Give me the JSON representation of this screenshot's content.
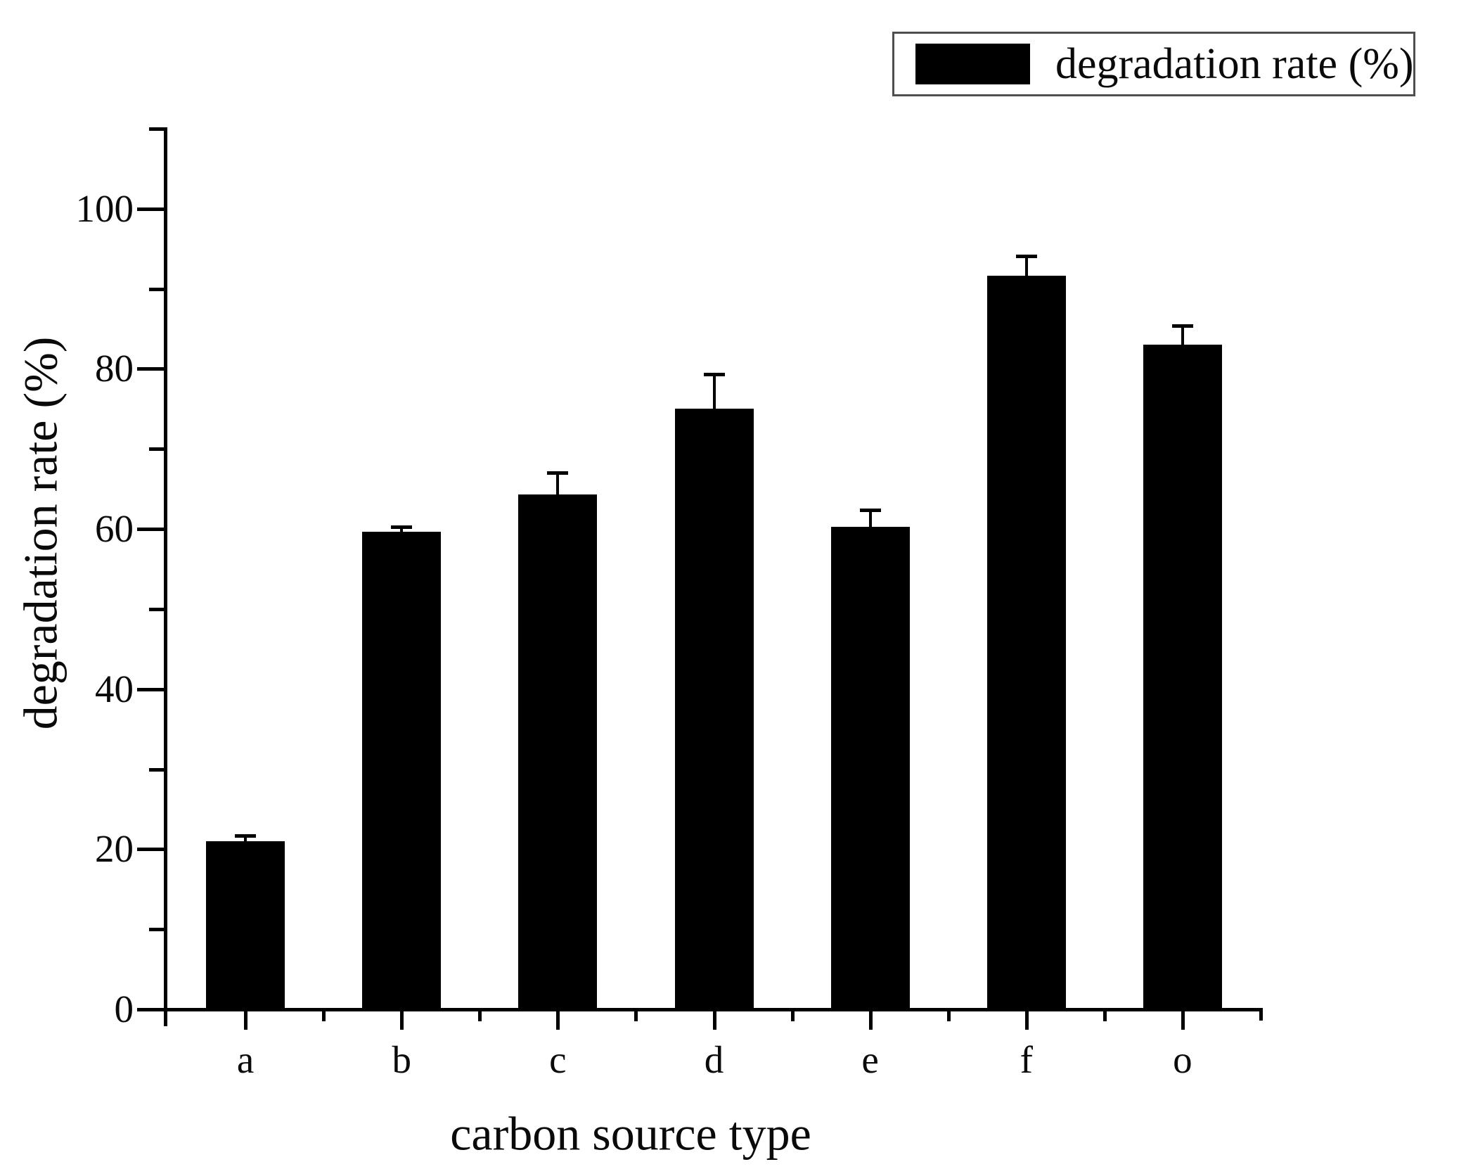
{
  "chart_data": {
    "type": "bar",
    "title": "",
    "categories": [
      "a",
      "b",
      "c",
      "d",
      "e",
      "f",
      "o"
    ],
    "values": [
      21,
      59.7,
      64.3,
      75,
      60.3,
      91.6,
      83
    ],
    "error_bars": [
      0.7,
      0.6,
      2.7,
      4.3,
      2.1,
      2.5,
      2.4
    ],
    "xlabel": "carbon source type",
    "ylabel": "degradation rate (%)",
    "legend_label": "degradation rate (%)",
    "legend_position": "top-right",
    "ylim": [
      0,
      110
    ],
    "yticks": [
      0,
      20,
      40,
      60,
      80,
      100
    ],
    "yminorticks": [
      10,
      30,
      50,
      70,
      90
    ],
    "grid": false,
    "bar_color": "#000000",
    "axis_color": "#000000",
    "background_color": "#ffffff"
  }
}
